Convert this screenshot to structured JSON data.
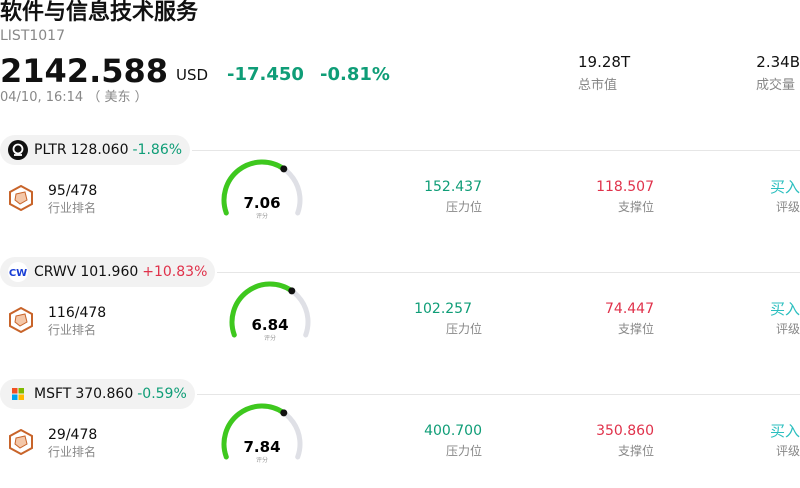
{
  "header": {
    "title": "软件与信息技术服务",
    "code": "LIST1017",
    "price": "2142.588",
    "currency": "USD",
    "change": "-17.450",
    "change_pct": "-0.81%",
    "time": "04/10, 16:14 （ 美东 ）",
    "market_cap": "19.28T",
    "market_cap_label": "总市值",
    "volume": "2.34B",
    "volume_label": "成交量"
  },
  "stocks": [
    {
      "ticker": "PLTR",
      "price": "128.060",
      "change_pct": "-1.86%",
      "rank": "95/478",
      "rank_label": "行业排名",
      "score": "7.06",
      "score_label": "评分",
      "resistance": "152.437",
      "resistance_label": "压力位",
      "support": "118.507",
      "support_label": "支撑位",
      "rating": "买入",
      "rating_label": "评级"
    },
    {
      "ticker": "CRWV",
      "price": "101.960",
      "change_pct": "+10.83%",
      "rank": "116/478",
      "rank_label": "行业排名",
      "score": "6.84",
      "score_label": "评分",
      "resistance": "102.257",
      "resistance_label": "压力位",
      "support": "74.447",
      "support_label": "支撑位",
      "rating": "买入",
      "rating_label": "评级"
    },
    {
      "ticker": "MSFT",
      "price": "370.860",
      "change_pct": "-0.59%",
      "rank": "29/478",
      "rank_label": "行业排名",
      "score": "7.84",
      "score_label": "评分",
      "resistance": "400.700",
      "resistance_label": "压力位",
      "support": "350.860",
      "support_label": "支撑位",
      "rating": "买入",
      "rating_label": "评级"
    }
  ]
}
